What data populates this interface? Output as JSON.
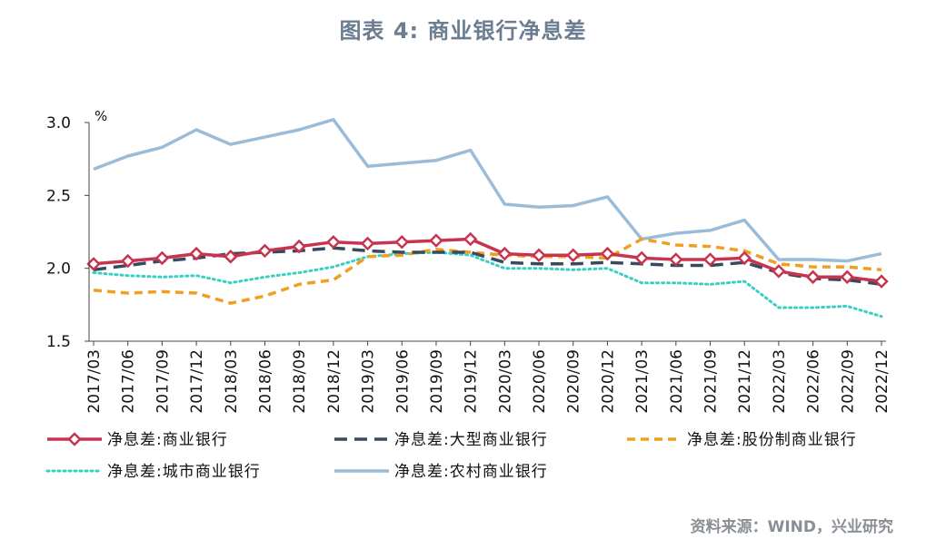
{
  "header": {
    "title": "图表 4:  商业银行净息差"
  },
  "footer": {
    "source": "资料来源：WIND，兴业研究"
  },
  "colors": {
    "commercial": "#c8344f",
    "big": "#3a4a5e",
    "joint": "#f0a020",
    "city": "#39d0c4",
    "rural": "#9bbcd9",
    "axis": "#444444"
  },
  "chart_data": {
    "type": "line",
    "title": "",
    "unit": "%",
    "ylim": [
      1.5,
      3.0
    ],
    "yticks": [
      "3.0",
      "2.5",
      "2.0",
      "1.5"
    ],
    "grid": false,
    "legend_position": "bottom",
    "categories": [
      "2017/03",
      "2017/06",
      "2017/09",
      "2017/12",
      "2018/03",
      "2018/06",
      "2018/09",
      "2018/12",
      "2019/03",
      "2019/06",
      "2019/09",
      "2019/12",
      "2020/03",
      "2020/06",
      "2020/09",
      "2020/12",
      "2021/03",
      "2021/06",
      "2021/09",
      "2021/12",
      "2022/03",
      "2022/06",
      "2022/09",
      "2022/12"
    ],
    "series": [
      {
        "key": "commercial",
        "name": "净息差:商业银行",
        "style": "solid-diamond",
        "values": [
          2.03,
          2.05,
          2.07,
          2.1,
          2.08,
          2.12,
          2.15,
          2.18,
          2.17,
          2.18,
          2.19,
          2.2,
          2.1,
          2.09,
          2.09,
          2.1,
          2.07,
          2.06,
          2.06,
          2.07,
          1.98,
          1.94,
          1.94,
          1.91
        ]
      },
      {
        "key": "big",
        "name": "净息差:大型商业银行",
        "style": "dashed",
        "values": [
          1.99,
          2.02,
          2.05,
          2.07,
          2.1,
          2.11,
          2.12,
          2.14,
          2.12,
          2.11,
          2.11,
          2.11,
          2.04,
          2.03,
          2.03,
          2.04,
          2.03,
          2.02,
          2.02,
          2.04,
          1.97,
          1.93,
          1.92,
          1.89
        ]
      },
      {
        "key": "joint",
        "name": "净息差:股份制商业银行",
        "style": "dashed",
        "values": [
          1.85,
          1.83,
          1.84,
          1.83,
          1.76,
          1.81,
          1.89,
          1.92,
          2.08,
          2.09,
          2.13,
          2.11,
          2.09,
          2.08,
          2.08,
          2.07,
          2.2,
          2.16,
          2.15,
          2.12,
          2.03,
          2.01,
          2.01,
          1.99
        ]
      },
      {
        "key": "city",
        "name": "净息差:城市商业银行",
        "style": "dotted",
        "values": [
          1.97,
          1.95,
          1.94,
          1.95,
          1.9,
          1.94,
          1.97,
          2.01,
          2.08,
          2.1,
          2.11,
          2.09,
          2.0,
          2.0,
          1.99,
          2.0,
          1.9,
          1.9,
          1.89,
          1.91,
          1.73,
          1.73,
          1.74,
          1.67
        ]
      },
      {
        "key": "rural",
        "name": "净息差:农村商业银行",
        "style": "solid",
        "values": [
          2.68,
          2.77,
          2.83,
          2.95,
          2.85,
          2.9,
          2.95,
          3.02,
          2.7,
          2.72,
          2.74,
          2.81,
          2.44,
          2.42,
          2.43,
          2.49,
          2.2,
          2.24,
          2.26,
          2.33,
          2.06,
          2.06,
          2.05,
          2.1
        ]
      }
    ]
  }
}
